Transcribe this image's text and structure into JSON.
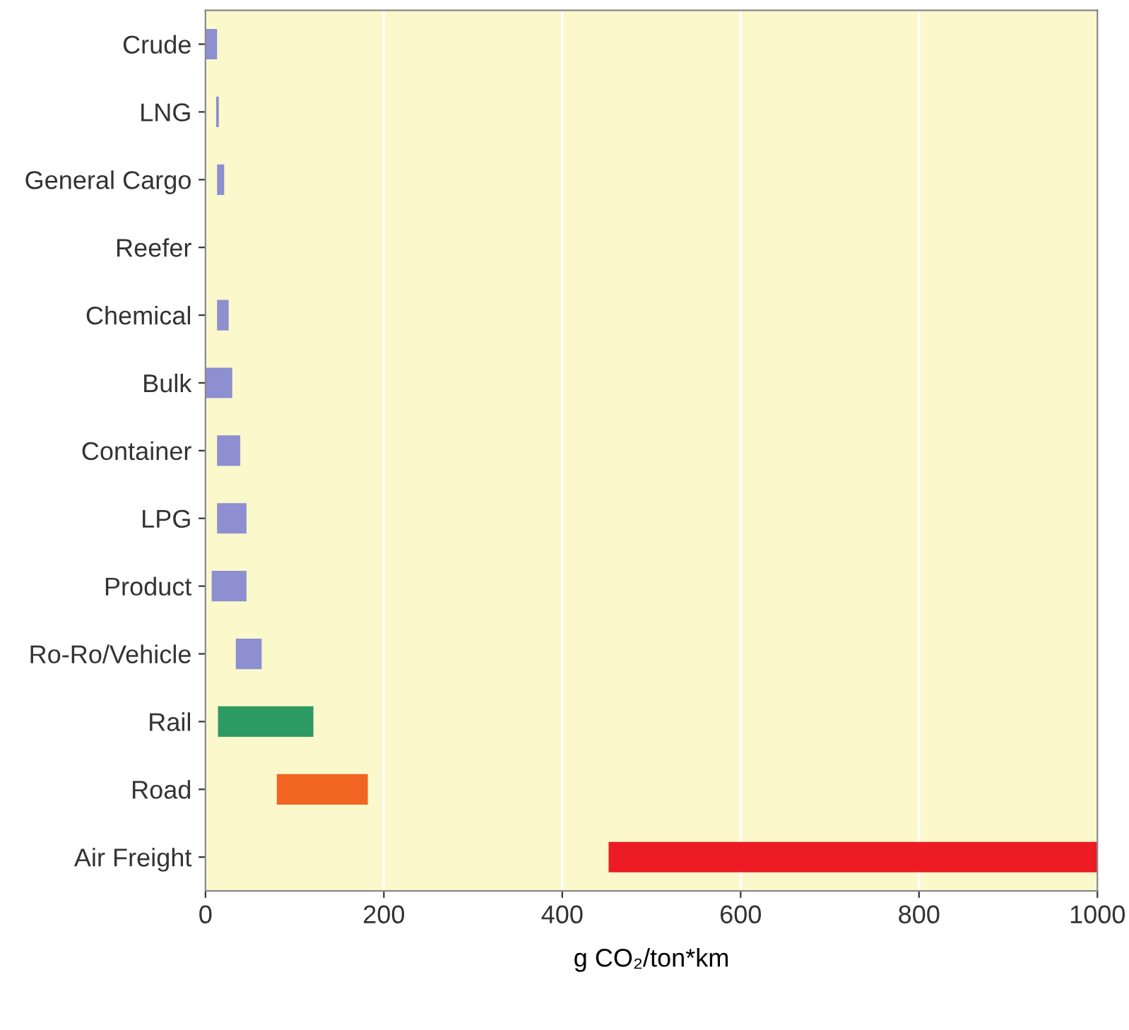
{
  "chart_data": {
    "type": "bar",
    "orientation": "horizontal",
    "xlabel": "g CO₂/ton*km",
    "categories": [
      "Crude",
      "LNG",
      "General Cargo",
      "Reefer",
      "Chemical",
      "Bulk",
      "Container",
      "LPG",
      "Product",
      "Ro-Ro/Vehicle",
      "Rail",
      "Road",
      "Air Freight"
    ],
    "base": [
      0,
      12,
      13,
      null,
      13,
      0,
      13,
      13,
      7,
      34,
      14,
      80,
      452
    ],
    "values": [
      13,
      3,
      8,
      null,
      13,
      30,
      26,
      33,
      39,
      29,
      107,
      102,
      548
    ],
    "colors": [
      "#8d8fd0",
      "#8d8fd0",
      "#8d8fd0",
      "#8d8fd0",
      "#8d8fd0",
      "#8d8fd0",
      "#8d8fd0",
      "#8d8fd0",
      "#8d8fd0",
      "#8d8fd0",
      "#2e9a63",
      "#f26522",
      "#ed1c24"
    ],
    "xlim": [
      0,
      1000
    ],
    "xticks": [
      0,
      200,
      400,
      600,
      800,
      1000
    ],
    "grid": "x"
  }
}
